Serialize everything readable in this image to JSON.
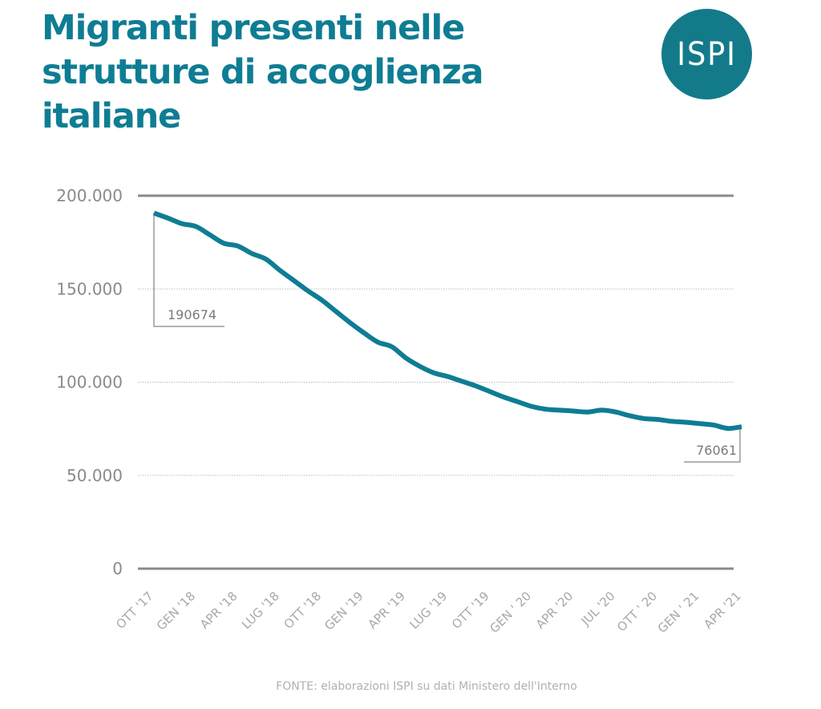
{
  "title": "Migranti presenti nelle strutture di accoglienza italiane",
  "logo": {
    "text": "ISPI",
    "color": "#137a8a"
  },
  "source": "FONTE: elaborazioni ISPI su dati Ministero dell'Interno",
  "colors": {
    "line": "#0e7d93",
    "title": "#0e7d93",
    "axis": "#8a8a8a"
  },
  "chart_data": {
    "type": "line",
    "title": "Migranti presenti nelle strutture di accoglienza italiane",
    "xlabel": "",
    "ylabel": "",
    "ylim": [
      0,
      200000
    ],
    "yticks": [
      0,
      50000,
      100000,
      150000,
      200000
    ],
    "ytick_labels": [
      "0",
      "50.000",
      "100.000",
      "150.000",
      "200.000"
    ],
    "grid": true,
    "legend": "none",
    "x": [
      "2017-10",
      "2017-11",
      "2017-12",
      "2018-01",
      "2018-02",
      "2018-03",
      "2018-04",
      "2018-05",
      "2018-06",
      "2018-07",
      "2018-08",
      "2018-09",
      "2018-10",
      "2018-11",
      "2018-12",
      "2019-01",
      "2019-02",
      "2019-03",
      "2019-04",
      "2019-05",
      "2019-06",
      "2019-07",
      "2019-08",
      "2019-09",
      "2019-10",
      "2019-11",
      "2019-12",
      "2020-01",
      "2020-02",
      "2020-03",
      "2020-04",
      "2020-05",
      "2020-06",
      "2020-07",
      "2020-08",
      "2020-09",
      "2020-10",
      "2020-11",
      "2020-12",
      "2021-01",
      "2021-02",
      "2021-03",
      "2021-04"
    ],
    "xtick_labels": [
      "OTT '17",
      "GEN '18",
      "APR '18",
      "LUG '18",
      "OTT '18",
      "GEN '19",
      "APR '19",
      "LUG '19",
      "OTT '19",
      "GEN ' 20",
      "APR '20",
      "JUL '20",
      "OTT ' 20",
      "GEN ' 21",
      "APR '21"
    ],
    "series": [
      {
        "name": "Migranti presenti",
        "values": [
          190674,
          188000,
          185000,
          183500,
          179000,
          174500,
          173000,
          169000,
          166000,
          160000,
          154500,
          149000,
          144000,
          138000,
          132000,
          126500,
          121500,
          119000,
          113000,
          108500,
          105000,
          103000,
          100500,
          98000,
          95000,
          92000,
          89500,
          87000,
          85500,
          85000,
          84500,
          84000,
          85000,
          84000,
          82000,
          80500,
          80000,
          79000,
          78500,
          77800,
          77000,
          75200,
          76061
        ]
      }
    ],
    "annotations": [
      {
        "label": "190674",
        "x": "2017-10",
        "value": 190674
      },
      {
        "label": "76061",
        "x": "2021-04",
        "value": 76061
      }
    ]
  }
}
